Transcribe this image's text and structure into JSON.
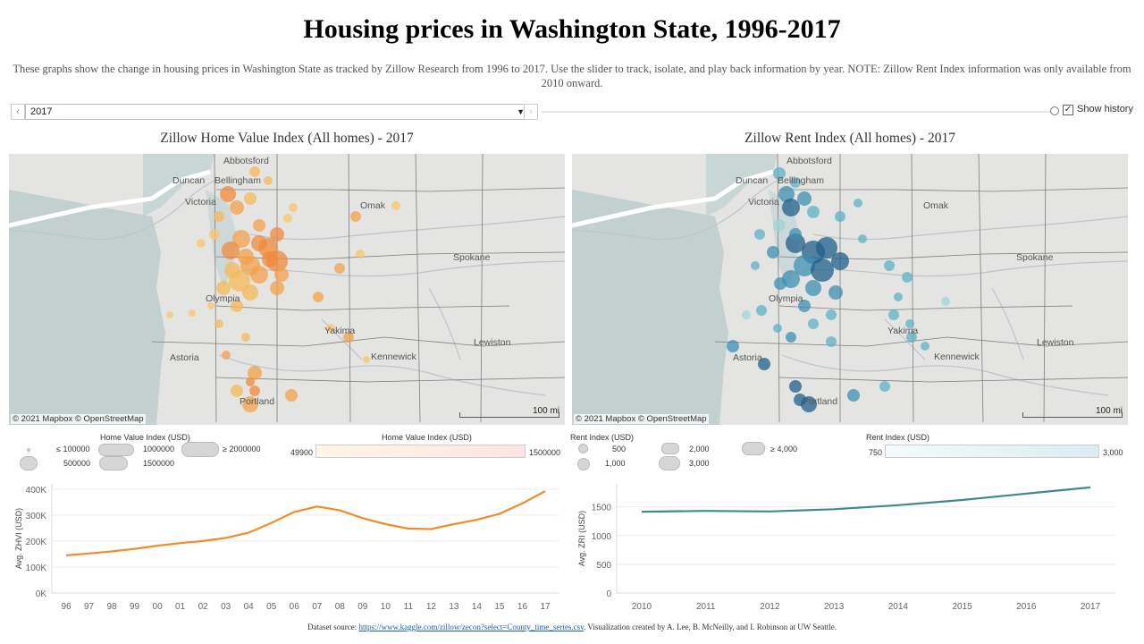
{
  "header": {
    "title": "Housing prices in Washington State, 1996-2017",
    "description": "These graphs show the change in housing prices in Washington State as tracked by Zillow Research from 1996 to 2017. Use the slider to track, isolate, and play back information by year. NOTE: Zillow Rent Index information was only available from 2010 onward."
  },
  "year_control": {
    "selected_year": "2017",
    "prev_icon": "‹",
    "next_icon": "›",
    "dropdown_icon": "▼",
    "show_history_label": "Show history",
    "show_history_checked": true
  },
  "map_left": {
    "title": "Zillow Home Value Index (All homes) - 2017",
    "attribution": "© 2021 Mapbox  © OpenStreetMap",
    "scale_label": "100 mi",
    "marker_colors": [
      "#f6b85a",
      "#f4a04a",
      "#f08a3c",
      "#f9c56a"
    ]
  },
  "map_right": {
    "title": "Zillow Rent Index (All homes) - 2017",
    "attribution": "© 2021 Mapbox  © OpenStreetMap",
    "scale_label": "100 mi",
    "marker_colors": [
      "#9fd4d8",
      "#5eb0c4",
      "#3d8fb3",
      "#1f5f8b"
    ]
  },
  "cities": [
    "Abbotsford",
    "Duncan",
    "Bellingham",
    "Victoria",
    "Omak",
    "Spokane",
    "Olympia",
    "Yakima",
    "Lewiston",
    "Astoria",
    "Kennewick",
    "Portland"
  ],
  "legend_left": {
    "size_title": "Home Value Index (USD)",
    "size_labels": [
      "≤ 100000",
      "1000000",
      "≥ 2000000",
      "500000",
      "1500000"
    ],
    "color_title": "Home Value Index (USD)",
    "color_min": "49900",
    "color_max": "1500000",
    "ramp_colors": [
      "#fff6e6",
      "#fde4e4"
    ]
  },
  "legend_right": {
    "size_title": "Rent Index (USD)",
    "size_labels": [
      "500",
      "2,000",
      "≥ 4,000",
      "1,000",
      "3,000"
    ],
    "color_title": "Rent Index (USD)",
    "color_min": "750",
    "color_max": "3,000",
    "ramp_colors": [
      "#f3fbfb",
      "#dcecf2"
    ]
  },
  "chart_data": [
    {
      "type": "line",
      "ylabel": "Avg. ZHVI (USD)",
      "x": [
        "96",
        "97",
        "98",
        "99",
        "00",
        "01",
        "02",
        "03",
        "04",
        "05",
        "06",
        "07",
        "08",
        "09",
        "10",
        "11",
        "12",
        "13",
        "14",
        "15",
        "16",
        "17"
      ],
      "values": [
        145000,
        152000,
        160000,
        170000,
        182000,
        192000,
        200000,
        212000,
        232000,
        270000,
        312000,
        333000,
        318000,
        288000,
        265000,
        248000,
        246000,
        265000,
        282000,
        305000,
        345000,
        392000
      ],
      "ylim": [
        0,
        420000
      ],
      "yticks": [
        0,
        100000,
        200000,
        300000,
        400000
      ],
      "ytick_labels": [
        "0K",
        "100K",
        "200K",
        "300K",
        "400K"
      ],
      "color": "#f08c2e",
      "grid": true
    },
    {
      "type": "line",
      "ylabel": "Avg. ZRI (USD)",
      "x": [
        "2010",
        "2011",
        "2012",
        "2013",
        "2014",
        "2015",
        "2016",
        "2017"
      ],
      "values": [
        1415,
        1430,
        1420,
        1460,
        1530,
        1620,
        1730,
        1840
      ],
      "ylim": [
        0,
        1900
      ],
      "yticks": [
        0,
        500,
        1000,
        1500
      ],
      "ytick_labels": [
        "0",
        "500",
        "1000",
        "1500"
      ],
      "color": "#3d8b8a",
      "grid": true
    }
  ],
  "footer": {
    "prefix": "Dataset source: ",
    "link_text": "https://www.kaggle.com/zillow/zecon?select=County_time_series.csv",
    "suffix": ". Visualization created by A. Lee, B. McNeilly, and I. Robinson at UW Seattle."
  }
}
